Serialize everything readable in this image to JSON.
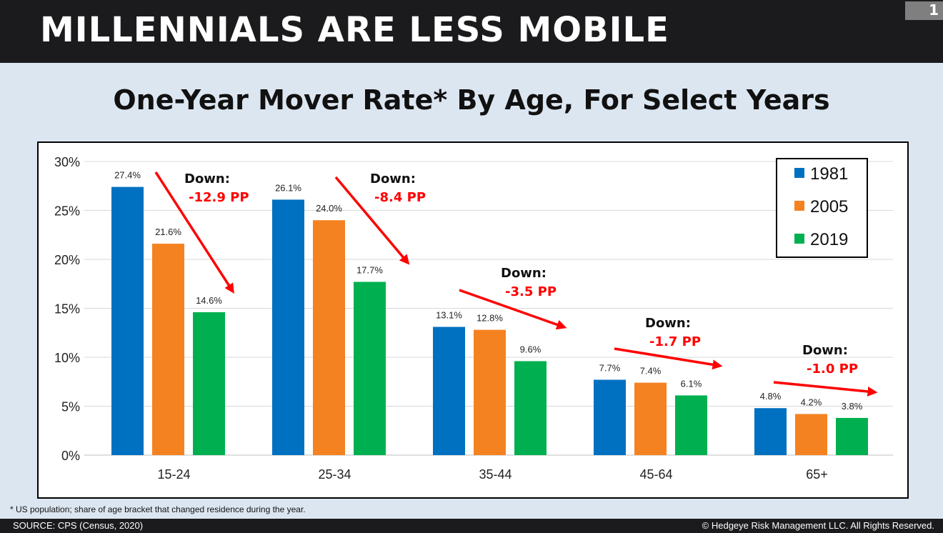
{
  "header": {
    "title": "MILLENNIALS ARE LESS MOBILE",
    "page_number": "1"
  },
  "footnote": "* US population; share of age bracket that changed residence during the year.",
  "footer": {
    "source": "SOURCE: CPS (Census, 2020)",
    "copyright": "© Hedgeye Risk Management LLC. All Rights Reserved."
  },
  "chart_data": {
    "type": "bar",
    "title": "One-Year Mover Rate* By Age, For Select Years",
    "categories": [
      "15-24",
      "25-34",
      "35-44",
      "45-64",
      "65+"
    ],
    "series": [
      {
        "name": "1981",
        "color": "#0070c0",
        "values": [
          27.4,
          26.1,
          13.1,
          7.7,
          4.8
        ],
        "labels": [
          "27.4%",
          "26.1%",
          "13.1%",
          "7.7%",
          "4.8%"
        ]
      },
      {
        "name": "2005",
        "color": "#f58220",
        "values": [
          21.6,
          24.0,
          12.8,
          7.4,
          4.2
        ],
        "labels": [
          "21.6%",
          "24.0%",
          "12.8%",
          "7.4%",
          "4.2%"
        ]
      },
      {
        "name": "2019",
        "color": "#00b050",
        "values": [
          14.6,
          17.7,
          9.6,
          6.1,
          3.8
        ],
        "labels": [
          "14.6%",
          "17.7%",
          "9.6%",
          "6.1%",
          "3.8%"
        ]
      }
    ],
    "ylim": [
      0,
      30
    ],
    "yticks": [
      "0%",
      "5%",
      "10%",
      "15%",
      "20%",
      "25%",
      "30%"
    ],
    "grid": true,
    "legend": "top-right",
    "annotations": [
      {
        "label": "Down:",
        "value": "-12.9 PP"
      },
      {
        "label": "Down:",
        "value": "-8.4 PP"
      },
      {
        "label": "Down:",
        "value": "-3.5 PP"
      },
      {
        "label": "Down:",
        "value": "-1.7 PP"
      },
      {
        "label": "Down:",
        "value": "-1.0 PP"
      }
    ],
    "annotation_color": "#ff0000"
  }
}
